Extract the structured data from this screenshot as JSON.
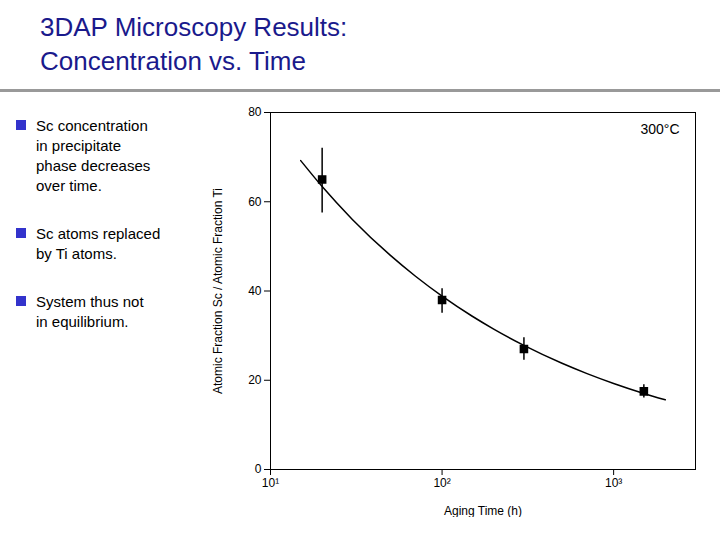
{
  "chart_data": {
    "type": "scatter",
    "title": "3DAP Microscopy Results:",
    "subtitle": "Concentration vs. Time",
    "bullet_points": [
      "Sc concentration\nin precipitate\nphase decreases\nover time.",
      "Sc atoms replaced\nby Ti atoms.",
      "System thus not\nin equilibrium."
    ],
    "annotation": "300°C",
    "xlabel": "Aging Time (h)",
    "ylabel": "Atomic Fraction Sc / Atomic Fraction Ti",
    "log": "x",
    "grid": false,
    "xlim": [
      10,
      3000
    ],
    "xticks": [
      {
        "value": 10,
        "label": "10¹"
      },
      {
        "value": 100,
        "label": "10²"
      },
      {
        "value": 1000,
        "label": "10³"
      }
    ],
    "ylim": [
      0,
      80
    ],
    "yticks": [
      0,
      20,
      40,
      60,
      80
    ],
    "series": [
      {
        "type": "scatter",
        "marker": "square",
        "color": "#000000",
        "x": [
          20,
          100,
          300,
          1500
        ],
        "values": [
          65.0,
          38.0,
          27.0,
          17.5
        ],
        "error_lower": [
          7.5,
          3.0,
          2.5,
          1.5
        ],
        "error_upper": [
          7.0,
          2.5,
          2.5,
          1.5
        ]
      },
      {
        "type": "line",
        "line_style": "solid",
        "color": "#000000",
        "x": [
          15,
          20,
          30,
          50,
          70,
          100,
          150,
          200,
          300,
          500,
          700,
          1000,
          1500,
          2000
        ],
        "values": [
          69.21,
          63.4,
          56.04,
          47.97,
          43.3,
          38.85,
          34.34,
          31.46,
          27.81,
          23.8,
          21.49,
          19.28,
          17.04,
          15.61
        ]
      }
    ]
  }
}
